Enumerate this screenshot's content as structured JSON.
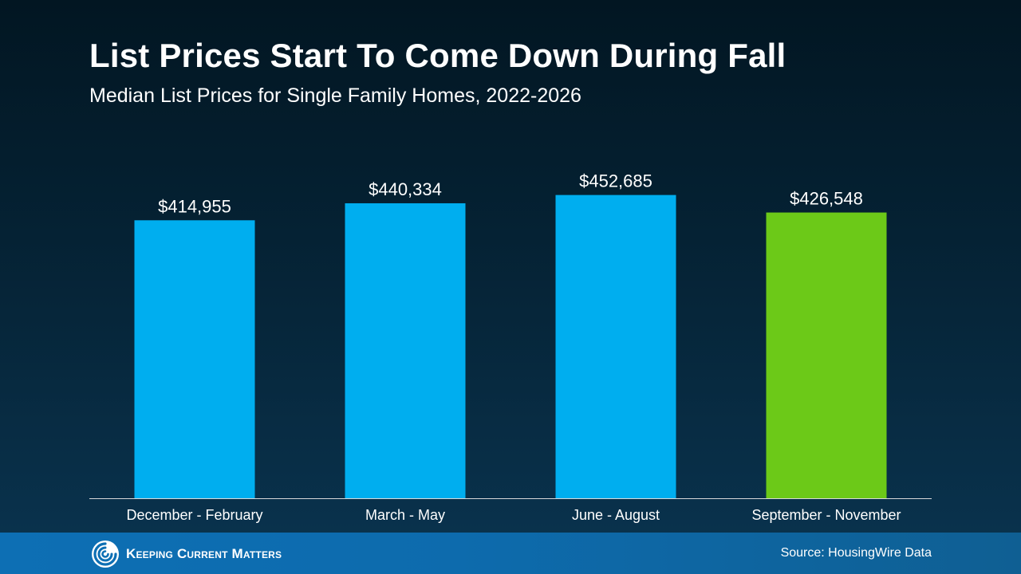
{
  "brand": {
    "name": "Keeping Current Matters"
  },
  "source": "Source: HousingWire Data",
  "colors": {
    "bar_default": "#00AEEF",
    "bar_highlight": "#6CC918"
  },
  "chart_data": {
    "type": "bar",
    "title": "List Prices Start To Come Down During Fall",
    "subtitle": "Median List Prices for Single Family Homes, 2022-2026",
    "categories": [
      "December - February",
      "March - May",
      "June - August",
      "September - November"
    ],
    "values": [
      414955,
      440334,
      452685,
      426548
    ],
    "data_labels": [
      "$414,955",
      "$440,334",
      "$452,685",
      "$426,548"
    ],
    "highlight_index": 3,
    "grid": false,
    "legend": "none"
  }
}
